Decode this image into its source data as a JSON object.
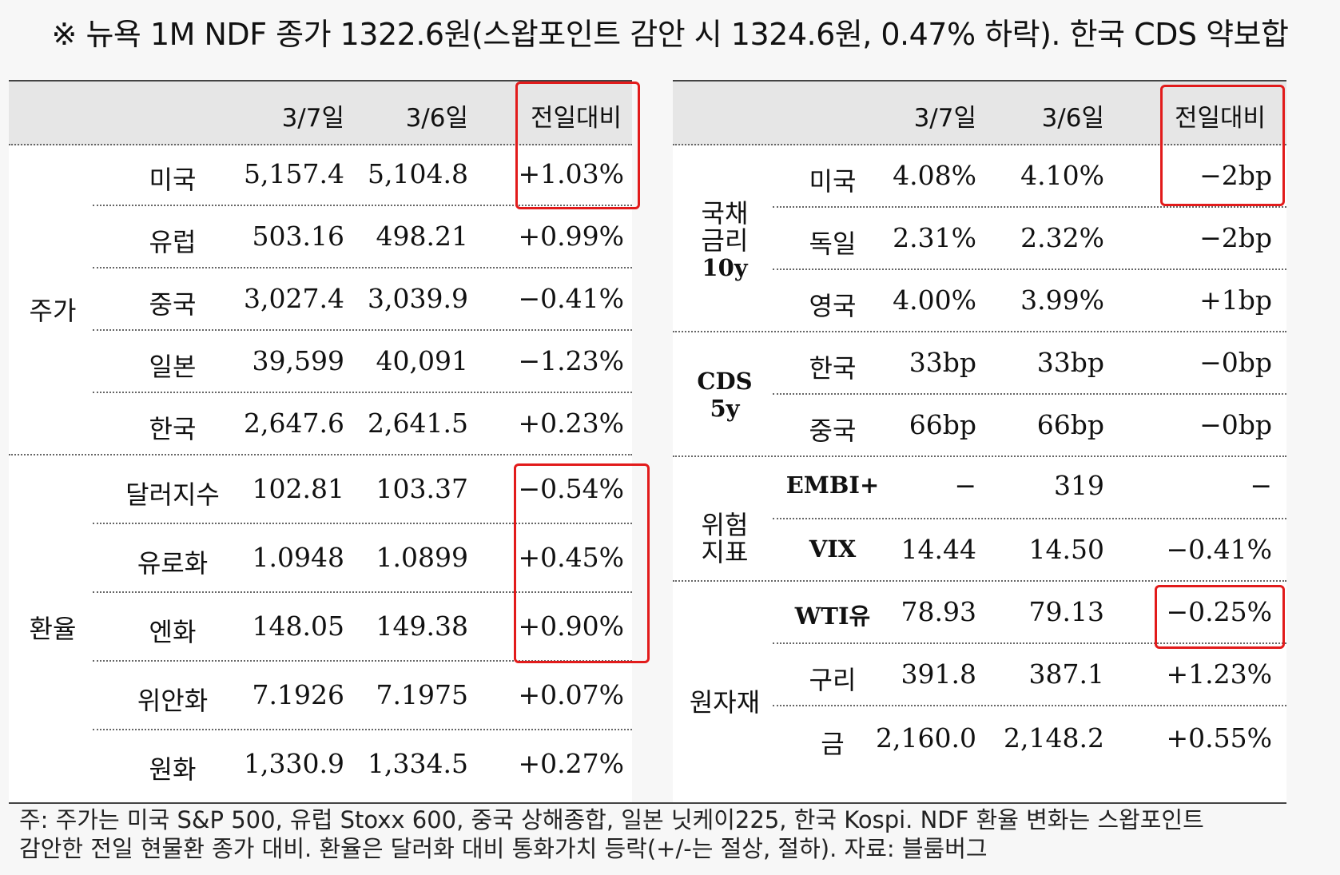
{
  "title": "※ 뉴욕 1M NDF 종가 1322.6원(스왑포인트 감안 시 1324.6원, 0.47% 하락). 한국 CDS 약보합",
  "left_table": {
    "headers": [
      "3/7일",
      "3/6일",
      "전일대비"
    ],
    "groups": [
      {
        "label": "주가",
        "rows": [
          {
            "name": "미국",
            "d1": "5,157.4",
            "d2": "5,104.8",
            "chg": "+1.03%"
          },
          {
            "name": "유럽",
            "d1": "503.16",
            "d2": "498.21",
            "chg": "+0.99%"
          },
          {
            "name": "중국",
            "d1": "3,027.4",
            "d2": "3,039.9",
            "chg": "−0.41%"
          },
          {
            "name": "일본",
            "d1": "39,599",
            "d2": "40,091",
            "chg": "−1.23%"
          },
          {
            "name": "한국",
            "d1": "2,647.6",
            "d2": "2,641.5",
            "chg": "+0.23%"
          }
        ]
      },
      {
        "label": "환율",
        "rows": [
          {
            "name": "달러지수",
            "d1": "102.81",
            "d2": "103.37",
            "chg": "−0.54%"
          },
          {
            "name": "유로화",
            "d1": "1.0948",
            "d2": "1.0899",
            "chg": "+0.45%"
          },
          {
            "name": "엔화",
            "d1": "148.05",
            "d2": "149.38",
            "chg": "+0.90%"
          },
          {
            "name": "위안화",
            "d1": "7.1926",
            "d2": "7.1975",
            "chg": "+0.07%"
          },
          {
            "name": "원화",
            "d1": "1,330.9",
            "d2": "1,334.5",
            "chg": "+0.27%"
          }
        ]
      }
    ]
  },
  "right_table": {
    "headers": [
      "3/7일",
      "3/6일",
      "전일대비"
    ],
    "groups": [
      {
        "label_lines": [
          "국채",
          "금리",
          "10y"
        ],
        "rows": [
          {
            "name": "미국",
            "d1": "4.08%",
            "d2": "4.10%",
            "chg": "−2bp"
          },
          {
            "name": "독일",
            "d1": "2.31%",
            "d2": "2.32%",
            "chg": "−2bp"
          },
          {
            "name": "영국",
            "d1": "4.00%",
            "d2": "3.99%",
            "chg": "+1bp"
          }
        ]
      },
      {
        "label_lines": [
          "CDS",
          "5y"
        ],
        "rows": [
          {
            "name": "한국",
            "d1": "33bp",
            "d2": "33bp",
            "chg": "−0bp"
          },
          {
            "name": "중국",
            "d1": "66bp",
            "d2": "66bp",
            "chg": "−0bp"
          }
        ]
      },
      {
        "label_lines": [
          "위험",
          "지표"
        ],
        "rows": [
          {
            "name": "EMBI+",
            "d1": "−",
            "d2": "319",
            "chg": "−"
          },
          {
            "name": "VIX",
            "d1": "14.44",
            "d2": "14.50",
            "chg": "−0.41%"
          }
        ]
      },
      {
        "label_lines": [
          "원자재"
        ],
        "rows": [
          {
            "name": "WTI유",
            "d1": "78.93",
            "d2": "79.13",
            "chg": "−0.25%"
          },
          {
            "name": "구리",
            "d1": "391.8",
            "d2": "387.1",
            "chg": "+1.23%"
          },
          {
            "name": "금",
            "d1": "2,160.0",
            "d2": "2,148.2",
            "chg": "+0.55%"
          }
        ]
      }
    ]
  },
  "note_lines": [
    "주: 주가는 미국 S&P 500, 유럽 Stoxx 600, 중국 상해종합, 일본 닛케이225, 한국 Kospi. NDF 환율 변화는 스왑포인트",
    "감안한 전일 현물환 종가 대비. 환율은 달러화 대비 통화가치 등락(+/-는 절상, 절하). 자료: 블룸버그"
  ],
  "highlight_color": "#e21b1b"
}
